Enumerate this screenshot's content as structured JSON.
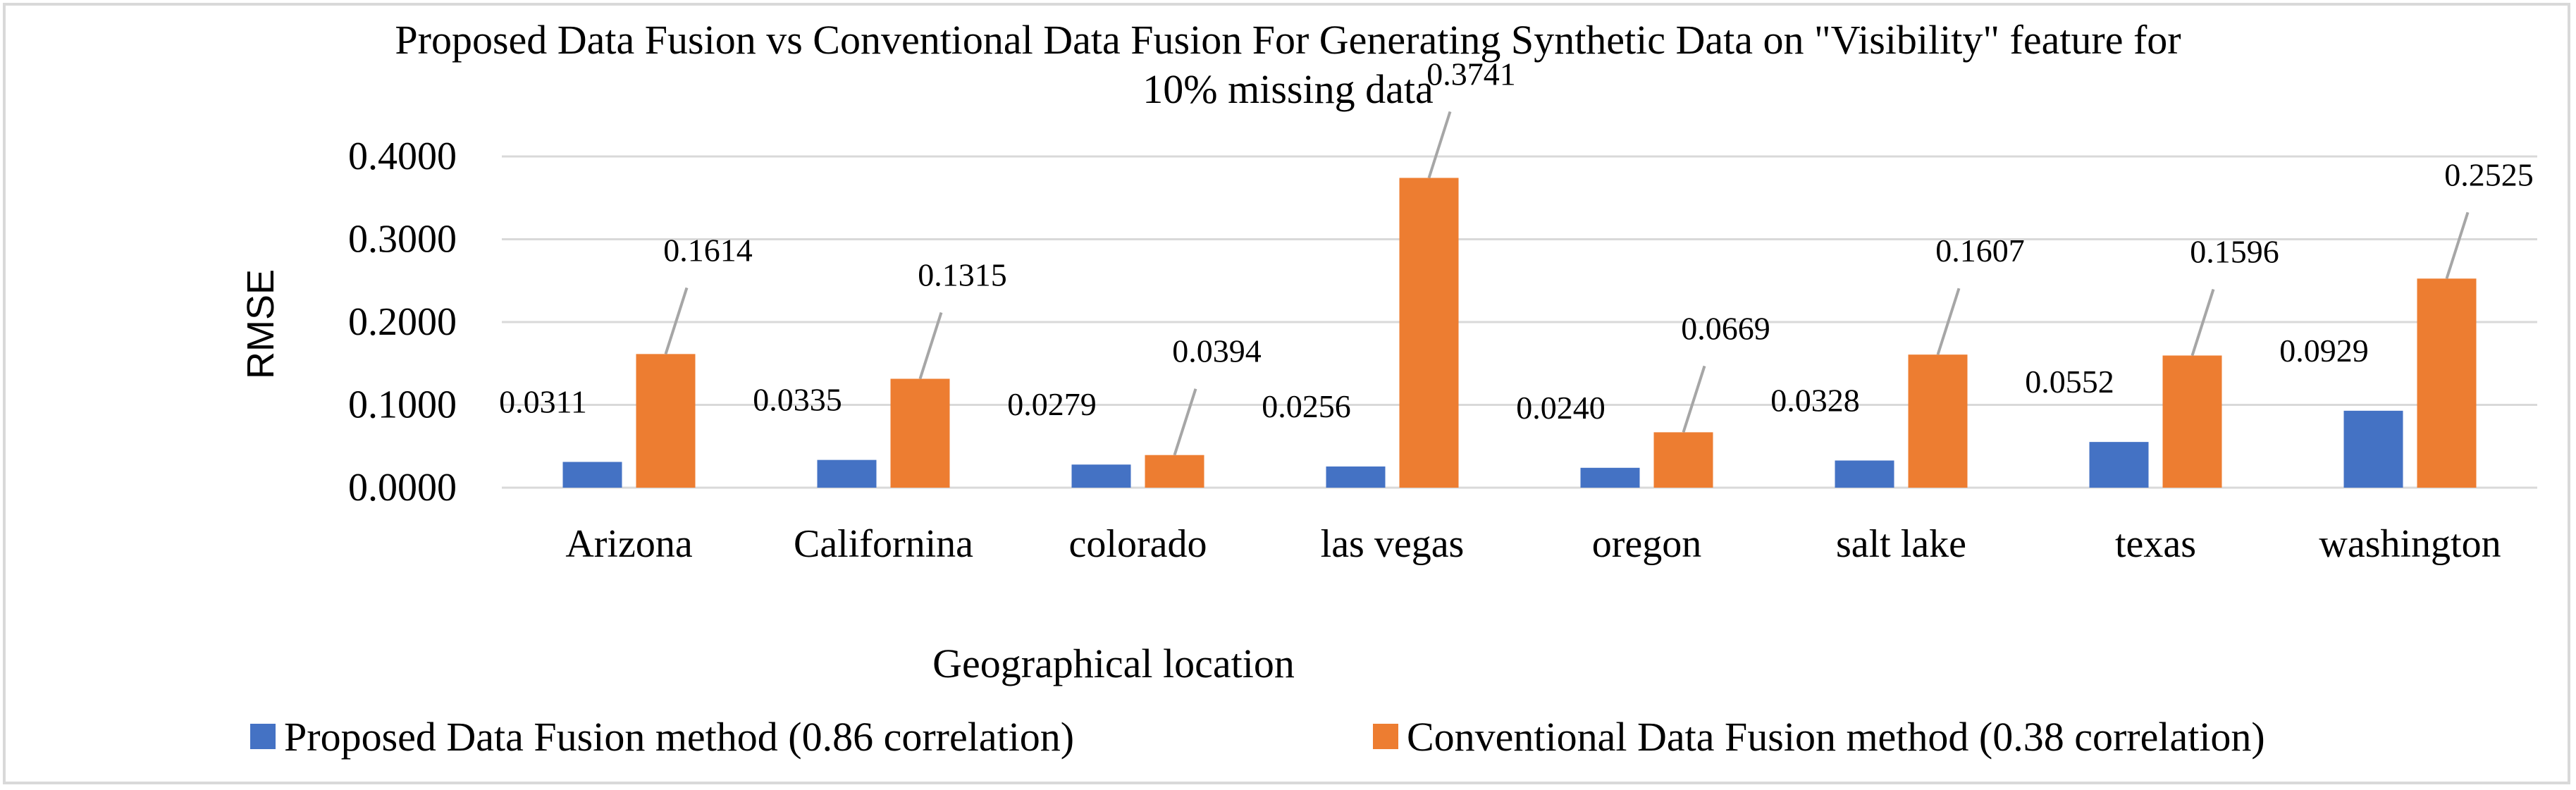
{
  "chart_data": {
    "type": "bar",
    "title_line1": "Proposed Data Fusion vs Conventional Data Fusion For Generating Synthetic Data on \"Visibility\" feature for",
    "title_line2": "10% missing data",
    "xlabel": "Geographical location",
    "ylabel": "RMSE",
    "ylim": [
      0,
      0.4
    ],
    "yticks": [
      "0.0000",
      "0.1000",
      "0.2000",
      "0.3000",
      "0.4000"
    ],
    "categories": [
      "Arizona",
      "Californina",
      "colorado",
      "las vegas",
      "oregon",
      "salt lake",
      "texas",
      "washington"
    ],
    "series": [
      {
        "name": "Proposed Data Fusion method (0.86 correlation)",
        "color": "#4472c4",
        "values": [
          0.0311,
          0.0335,
          0.0279,
          0.0256,
          0.024,
          0.0328,
          0.0552,
          0.0929
        ],
        "labels": [
          "0.0311",
          "0.0335",
          "0.0279",
          "0.0256",
          "0.0240",
          "0.0328",
          "0.0552",
          "0.0929"
        ]
      },
      {
        "name": "Conventional Data Fusion method (0.38 correlation)",
        "color": "#ed7d31",
        "values": [
          0.1614,
          0.1315,
          0.0394,
          0.3741,
          0.0669,
          0.1607,
          0.1596,
          0.2525
        ],
        "labels": [
          "0.1614",
          "0.1315",
          "0.0394",
          "0.3741",
          "0.0669",
          "0.1607",
          "0.1596",
          "0.2525"
        ]
      }
    ],
    "grid": true,
    "legend_position": "bottom"
  }
}
